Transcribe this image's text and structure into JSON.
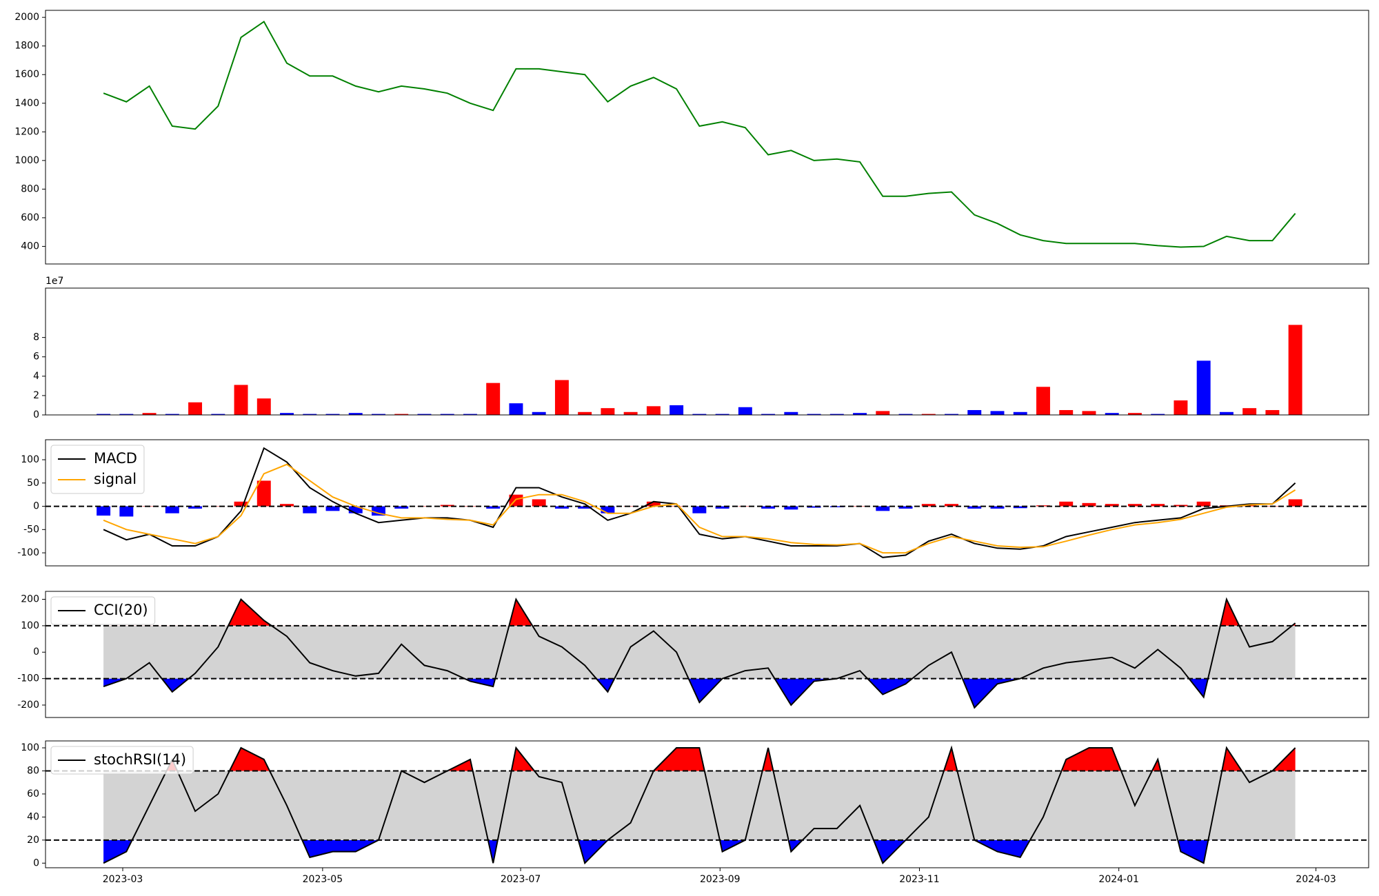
{
  "chart_data": [
    {
      "type": "line",
      "xlim": [
        -2.53,
        55.2
      ],
      "ylim": [
        277,
        2049
      ],
      "yticks": [
        400,
        600,
        800,
        1000,
        1200,
        1400,
        1600,
        1800,
        2000
      ],
      "series": [
        {
          "color": "green",
          "values": [
            1470,
            1410,
            1520,
            1240,
            1220,
            1380,
            1860,
            1970,
            1680,
            1590,
            1590,
            1520,
            1480,
            1520,
            1500,
            1470,
            1400,
            1350,
            1640,
            1640,
            1620,
            1600,
            1410,
            1520,
            1580,
            1500,
            1240,
            1270,
            1230,
            1040,
            1070,
            1000,
            1010,
            990,
            750,
            750,
            770,
            780,
            620,
            560,
            480,
            440,
            420,
            420,
            420,
            420,
            405,
            395,
            400,
            470,
            440,
            440,
            630
          ]
        }
      ]
    },
    {
      "type": "bar",
      "xlim": [
        -2.53,
        55.2
      ],
      "ylim": [
        0,
        13.1
      ],
      "yticks": [
        0,
        2,
        4,
        6,
        8
      ],
      "offset_label": "1e7",
      "values": [
        0.1,
        0.1,
        0.2,
        0.1,
        1.3,
        0.1,
        3.1,
        1.7,
        0.2,
        0.1,
        0.1,
        0.2,
        0.1,
        0.1,
        0.1,
        0.1,
        0.1,
        3.3,
        1.2,
        0.3,
        3.6,
        0.3,
        0.7,
        0.3,
        0.9,
        1.0,
        0.1,
        0.1,
        0.8,
        0.1,
        0.3,
        0.1,
        0.1,
        0.2,
        0.4,
        0.1,
        0.1,
        0.1,
        0.5,
        0.4,
        0.3,
        2.9,
        0.5,
        0.4,
        0.2,
        0.2,
        0.1,
        1.5,
        5.6,
        0.3,
        0.7,
        0.5,
        9.3
      ],
      "colors": [
        "blue",
        "blue",
        "red",
        "blue",
        "red",
        "blue",
        "red",
        "red",
        "blue",
        "blue",
        "blue",
        "blue",
        "blue",
        "red",
        "blue",
        "blue",
        "blue",
        "red",
        "blue",
        "blue",
        "red",
        "red",
        "red",
        "red",
        "red",
        "blue",
        "blue",
        "blue",
        "blue",
        "blue",
        "blue",
        "blue",
        "blue",
        "blue",
        "red",
        "blue",
        "red",
        "blue",
        "blue",
        "blue",
        "blue",
        "red",
        "red",
        "red",
        "blue",
        "red",
        "blue",
        "red",
        "blue",
        "blue",
        "red",
        "red",
        "red"
      ]
    },
    {
      "type": "macd",
      "xlim": [
        -2.53,
        55.2
      ],
      "ylim": [
        -128,
        143
      ],
      "yticks": [
        -100,
        -50,
        0,
        50,
        100
      ],
      "hlines": [
        0
      ],
      "legend": "upper left",
      "bars": {
        "up_color": "red",
        "down_color": "blue",
        "values": [
          -20,
          -22,
          0,
          -15,
          -5,
          0,
          10,
          55,
          5,
          -15,
          -10,
          -15,
          -20,
          -5,
          0,
          3,
          0,
          -5,
          25,
          15,
          -5,
          -5,
          -15,
          0,
          10,
          0,
          -15,
          -5,
          0,
          -5,
          -7,
          -3,
          -2,
          0,
          -10,
          -5,
          5,
          5,
          -5,
          -5,
          -4,
          2,
          10,
          7,
          5,
          5,
          5,
          3,
          10,
          2,
          2,
          0,
          15
        ]
      },
      "series": [
        {
          "name": "MACD",
          "color": "black",
          "values": [
            -50,
            -72,
            -60,
            -85,
            -85,
            -65,
            -10,
            125,
            95,
            40,
            10,
            -15,
            -35,
            -30,
            -25,
            -25,
            -30,
            -45,
            40,
            40,
            20,
            5,
            -30,
            -15,
            10,
            5,
            -60,
            -70,
            -65,
            -75,
            -85,
            -85,
            -85,
            -80,
            -110,
            -105,
            -75,
            -60,
            -80,
            -90,
            -92,
            -85,
            -65,
            -55,
            -45,
            -35,
            -30,
            -25,
            -5,
            0,
            5,
            5,
            50
          ]
        },
        {
          "name": "signal",
          "color": "orange",
          "values": [
            -30,
            -50,
            -60,
            -70,
            -80,
            -65,
            -20,
            70,
            90,
            55,
            20,
            0,
            -15,
            -25,
            -25,
            -28,
            -30,
            -40,
            15,
            25,
            25,
            10,
            -15,
            -15,
            0,
            5,
            -45,
            -65,
            -65,
            -70,
            -78,
            -82,
            -83,
            -80,
            -100,
            -100,
            -80,
            -65,
            -75,
            -85,
            -88,
            -87,
            -75,
            -62,
            -50,
            -40,
            -35,
            -28,
            -15,
            -2,
            3,
            5,
            35
          ]
        }
      ]
    },
    {
      "type": "oscillator",
      "xlim": [
        -2.53,
        55.2
      ],
      "ylim": [
        -247,
        230
      ],
      "yticks": [
        -200,
        -100,
        0,
        100,
        200
      ],
      "hlines": [
        100,
        -100
      ],
      "legend": "upper left",
      "band_color": "lightgray",
      "over_color": "red",
      "under_color": "blue",
      "series": [
        {
          "name": "CCI(20)",
          "color": "black",
          "values": [
            -130,
            -100,
            -40,
            -150,
            -80,
            20,
            200,
            120,
            60,
            -40,
            -70,
            -90,
            -80,
            30,
            -50,
            -70,
            -110,
            -130,
            200,
            60,
            20,
            -50,
            -150,
            20,
            80,
            0,
            -190,
            -100,
            -70,
            -60,
            -200,
            -110,
            -100,
            -70,
            -160,
            -120,
            -50,
            0,
            -210,
            -120,
            -100,
            -60,
            -40,
            -30,
            -20,
            -60,
            10,
            -60,
            -170,
            200,
            20,
            40,
            110
          ]
        }
      ]
    },
    {
      "type": "oscillator",
      "xlim": [
        -2.53,
        55.2
      ],
      "ylim": [
        -4,
        106
      ],
      "yticks": [
        0,
        20,
        40,
        60,
        80,
        100
      ],
      "hlines": [
        80,
        20
      ],
      "legend": "upper left",
      "band_color": "lightgray",
      "over_color": "red",
      "under_color": "blue",
      "xticks": [
        {
          "value": 0.84,
          "label": "2023-03"
        },
        {
          "value": 9.56,
          "label": "2023-05"
        },
        {
          "value": 18.2,
          "label": "2023-07"
        },
        {
          "value": 26.9,
          "label": "2023-09"
        },
        {
          "value": 35.6,
          "label": "2023-11"
        },
        {
          "value": 44.3,
          "label": "2024-01"
        },
        {
          "value": 52.9,
          "label": "2024-03"
        }
      ],
      "series": [
        {
          "name": "stochRSI(14)",
          "color": "black",
          "values": [
            0,
            10,
            50,
            90,
            45,
            60,
            100,
            90,
            50,
            5,
            10,
            10,
            20,
            80,
            70,
            80,
            90,
            0,
            100,
            75,
            70,
            0,
            20,
            35,
            80,
            100,
            100,
            10,
            20,
            100,
            10,
            30,
            30,
            50,
            0,
            20,
            40,
            100,
            20,
            10,
            5,
            40,
            90,
            100,
            100,
            50,
            90,
            10,
            0,
            100,
            70,
            80,
            100
          ]
        }
      ]
    }
  ]
}
